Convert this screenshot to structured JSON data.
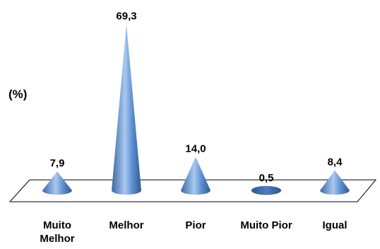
{
  "chart_data": {
    "type": "bar",
    "shape": "cone",
    "categories": [
      "Muito Melhor",
      "Melhor",
      "Pior",
      "Muito Pior",
      "Igual"
    ],
    "category_lines": [
      [
        "Muito",
        "Melhor"
      ],
      [
        "Melhor"
      ],
      [
        "Pior"
      ],
      [
        "Muito Pior"
      ],
      [
        "Igual"
      ]
    ],
    "values": [
      7.9,
      69.3,
      14.0,
      0.5,
      8.4
    ],
    "value_labels": [
      "7,9",
      "69,3",
      "14,0",
      "0,5",
      "8,4"
    ],
    "ylabel": "(%)",
    "title": "",
    "xlabel": "",
    "ylim": [
      0,
      70
    ],
    "grid": false,
    "legend": "none",
    "colors": {
      "cone_dark": "#3a6aa6",
      "cone_mid": "#5b8fd1",
      "cone_light": "#a9c8ef",
      "floor_stroke": "#000000"
    }
  }
}
